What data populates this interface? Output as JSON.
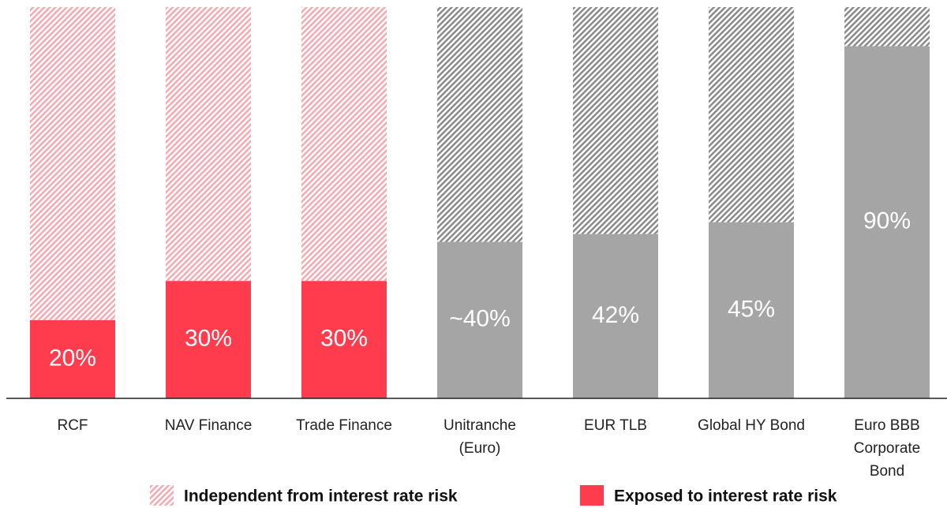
{
  "chart_data": {
    "type": "stacked-bar",
    "categories": [
      [
        "RCF"
      ],
      [
        "NAV Finance"
      ],
      [
        "Trade Finance"
      ],
      [
        "Unitranche",
        "(Euro)"
      ],
      [
        "EUR TLB"
      ],
      [
        "Global HY Bond"
      ],
      [
        "Euro BBB",
        "Corporate",
        "Bond"
      ]
    ],
    "series": [
      {
        "name": "Exposed to interest rate risk",
        "color": "#ff3b4e",
        "colors": [
          "#ff3b4e",
          "#ff3b4e",
          "#ff3b4e",
          "#a5a5a5",
          "#a5a5a5",
          "#a5a5a5",
          "#a5a5a5"
        ],
        "values": [
          20,
          30,
          30,
          40,
          42,
          45,
          90
        ],
        "value_labels": [
          "20%",
          "30%",
          "30%",
          "~40%",
          "42%",
          "45%",
          "90%"
        ]
      },
      {
        "name": "Independent from interest rate risk",
        "color": "#f5a9b0",
        "pattern": "hatch",
        "colors": [
          "#f5a9b0",
          "#f5a9b0",
          "#f5a9b0",
          "#8a8a8a",
          "#8a8a8a",
          "#8a8a8a",
          "#8a8a8a"
        ],
        "values": [
          80,
          70,
          70,
          60,
          58,
          55,
          10
        ]
      }
    ],
    "ylim": [
      0,
      100
    ]
  }
}
